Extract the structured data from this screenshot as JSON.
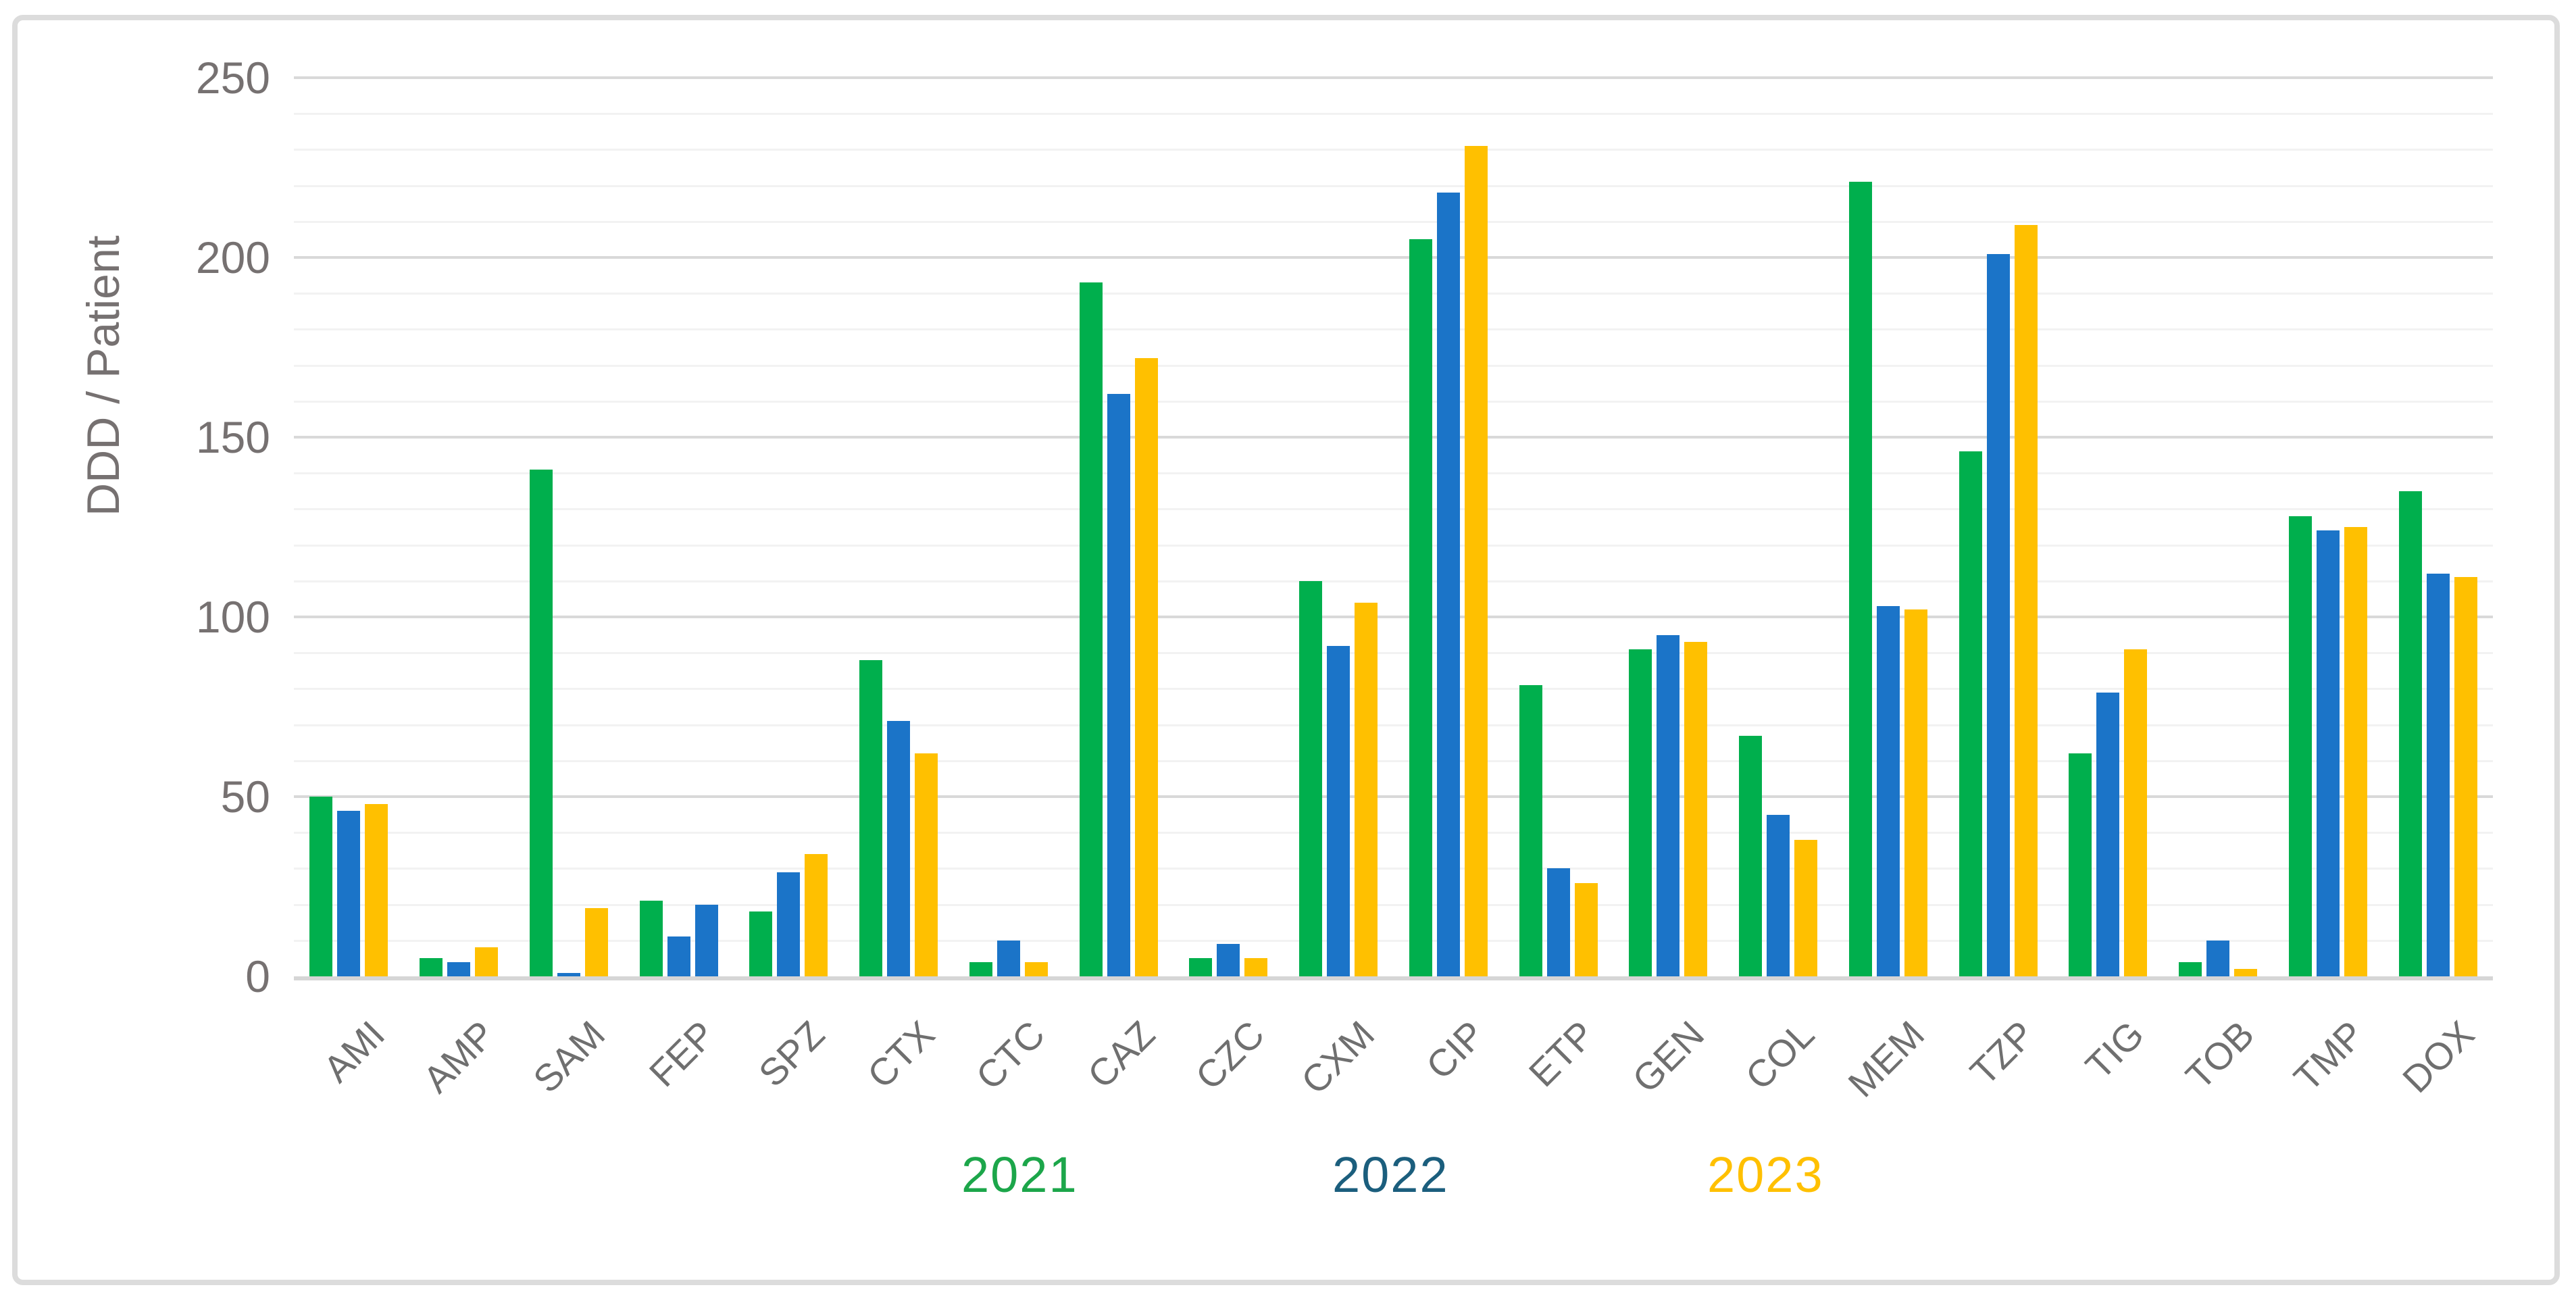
{
  "chart_data": {
    "type": "bar",
    "title": "",
    "xlabel": "",
    "ylabel": "DDD / Patient",
    "ylim": [
      0,
      250
    ],
    "y_major_step": 50,
    "y_minor_step": 10,
    "y_tick_labels": [
      "0",
      "50",
      "100",
      "150",
      "200",
      "250"
    ],
    "grid": "horizontal minor lines every 10 (very light gray), major lines every 50 (light gray)",
    "legend_position": "bottom-center",
    "categories": [
      "AMI",
      "AMP",
      "SAM",
      "FEP",
      "SPZ",
      "CTX",
      "CTC",
      "CAZ",
      "CZC",
      "CXM",
      "CIP",
      "ETP",
      "GEN",
      "COL",
      "MEM",
      "TZP",
      "TIG",
      "TOB",
      "TMP",
      "DOX"
    ],
    "series": [
      {
        "name": "2021",
        "color": "#00AF4D",
        "legend_color": "#1CA64A",
        "values": [
          50,
          5,
          141,
          21,
          18,
          88,
          4,
          193,
          5,
          110,
          205,
          81,
          91,
          67,
          221,
          146,
          62,
          4,
          128,
          135
        ]
      },
      {
        "name": "2022",
        "color": "#1B74C8",
        "legend_color": "#1B5E7D",
        "values": [
          46,
          4,
          1,
          11,
          29,
          71,
          10,
          162,
          9,
          92,
          218,
          30,
          95,
          45,
          103,
          201,
          79,
          10,
          124,
          112
        ]
      },
      {
        "name": "2023",
        "color": "#FFC000",
        "legend_color": "#FFC000",
        "values": [
          48,
          8,
          19,
          20,
          34,
          62,
          4,
          172,
          5,
          104,
          231,
          26,
          93,
          38,
          102,
          209,
          91,
          2,
          125,
          111
        ]
      }
    ],
    "bar_color_overrides": {
      "FEP": {
        "2023": "#1B74C8"
      }
    },
    "notes": "FEP 2023 bar is rendered in the same blue as the 2022 series in the source image"
  },
  "frame": {
    "border_color": "#DCDCDC",
    "background": "#FFFFFF"
  },
  "text_colors": {
    "axis_ticks": "#767171",
    "axis_title": "#767171",
    "category_labels": "#6F6F6F"
  }
}
